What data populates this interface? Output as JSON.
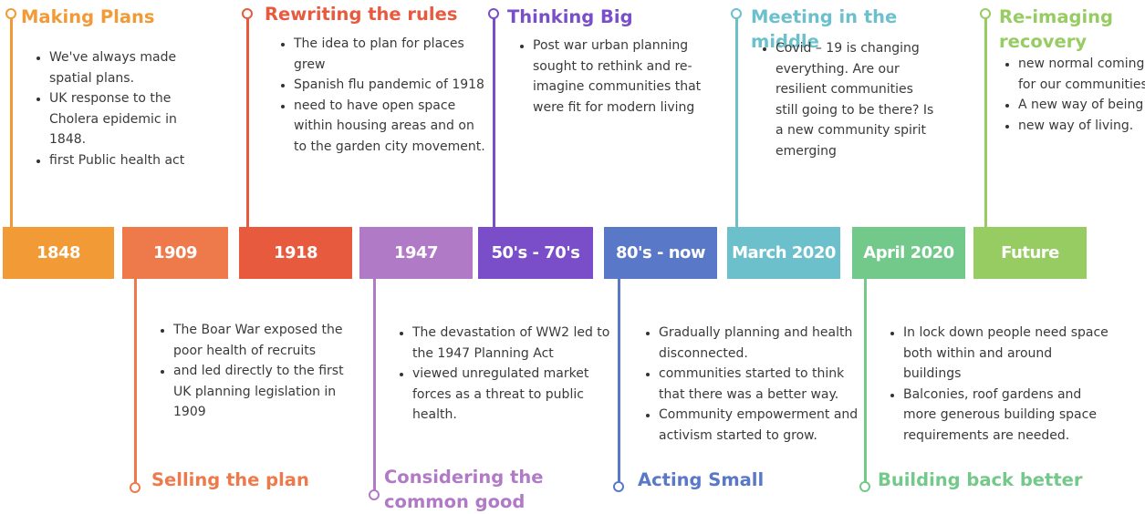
{
  "events": [
    {
      "id": "e1848",
      "label": "1848",
      "color": "#f29a36",
      "title": "Making Plans",
      "bullets": [
        "We've always made spatial plans.",
        "UK response to the Cholera epidemic in 1848.",
        "first Public health act"
      ]
    },
    {
      "id": "e1909",
      "label": "1909",
      "color": "#ee7a4b",
      "title": "Selling the plan",
      "bullets": [
        "The Boar War exposed the poor health of recruits",
        "and led directly to the first UK planning legislation in 1909"
      ]
    },
    {
      "id": "e1918",
      "label": "1918",
      "color": "#e85a3e",
      "title": "Rewriting the rules",
      "bullets": [
        "The idea to plan for places grew",
        "Spanish flu pandemic of 1918",
        "need to have open space within housing areas and on to the garden city movement."
      ]
    },
    {
      "id": "e1947",
      "label": "1947",
      "color": "#b07ac6",
      "title": "Considering the common good",
      "bullets": [
        "The devastation of WW2 led to the 1947 Planning Act",
        "viewed unregulated market forces as a threat to public health."
      ]
    },
    {
      "id": "e5070",
      "label": "50's - 70's",
      "color": "#7a4dc9",
      "title": "Thinking Big",
      "bullets": [
        "Post war urban planning sought to rethink and re-imagine communities that were fit for modern living"
      ]
    },
    {
      "id": "e80now",
      "label": "80's - now",
      "color": "#5a78c8",
      "title": "Acting Small",
      "bullets": [
        "Gradually planning and health disconnected.",
        "communities started to think that there was a better way.",
        "Community empowerment and activism started to grow."
      ]
    },
    {
      "id": "emar2020",
      "label": "March 2020",
      "color": "#6cc0cc",
      "title": "Meeting in the middle",
      "bullets": [
        "Covid – 19 is changing everything. Are our resilient communities still going to be there? Is a new community spirit emerging"
      ]
    },
    {
      "id": "eapr2020",
      "label": "April 2020",
      "color": "#72c98a",
      "title": "Building back better",
      "bullets": [
        "In lock down people need space both within and around buildings",
        "Balconies, roof gardens and more generous building space requirements are needed."
      ]
    },
    {
      "id": "efuture",
      "label": "Future",
      "color": "#96cc62",
      "title": "Re-imaging recovery",
      "bullets": [
        "new normal coming for our communities.",
        "A new way of being",
        "new way of living."
      ]
    }
  ]
}
